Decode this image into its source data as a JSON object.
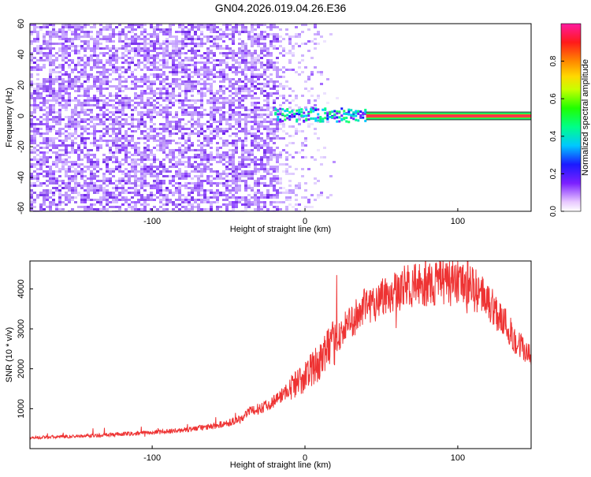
{
  "title": "GN04.2026.019.04.26.E36",
  "chart_data": [
    {
      "type": "heatmap",
      "title": "GN04.2026.019.04.26.E36",
      "xlabel": "Height of straight line (km)",
      "ylabel": "Frequency (Hz)",
      "xlim": [
        -180,
        148
      ],
      "ylim": [
        -62,
        60
      ],
      "x_ticks": [
        -100,
        0,
        100
      ],
      "y_ticks": [
        -60,
        -40,
        -20,
        0,
        20,
        40,
        60
      ],
      "colorbar": {
        "label": "Normalized spectral amplitude",
        "range": [
          0,
          1
        ],
        "ticks": [
          0.0,
          0.2,
          0.4,
          0.6,
          0.8
        ],
        "tick_labels": [
          "0.0",
          "0.2",
          "0.4",
          "0.6",
          "0.8"
        ]
      },
      "regions": [
        {
          "name": "dense noise",
          "x_range": [
            -180,
            -18
          ],
          "amplitude": 0.12
        },
        {
          "name": "fading noise",
          "x_range": [
            -18,
            22
          ],
          "amplitude": 0.06
        },
        {
          "name": "signal onset",
          "x_range": [
            -20,
            40
          ],
          "freq_range": [
            -4,
            5
          ],
          "amplitude": 0.4
        },
        {
          "name": "signal band",
          "x_range": [
            40,
            148
          ],
          "freq_range": [
            -1,
            1
          ],
          "amplitude": 0.95
        }
      ]
    },
    {
      "type": "line",
      "xlabel": "Height of straight line (km)",
      "ylabel": "SNR (10 * v/v)",
      "xlim": [
        -180,
        148
      ],
      "ylim": [
        0,
        4700
      ],
      "x_ticks": [
        -100,
        0,
        100
      ],
      "y_ticks": [
        1000,
        2000,
        3000,
        4000
      ],
      "series": [
        {
          "name": "SNR",
          "color": "#ee3333",
          "x": [
            -180,
            -150,
            -120,
            -100,
            -80,
            -60,
            -50,
            -42,
            -38,
            -30,
            -20,
            -10,
            0,
            10,
            20,
            30,
            40,
            50,
            60,
            70,
            80,
            90,
            100,
            110,
            120,
            130,
            140,
            148
          ],
          "y": [
            270,
            310,
            360,
            400,
            460,
            560,
            650,
            750,
            900,
            1000,
            1200,
            1500,
            1800,
            2200,
            2700,
            3200,
            3550,
            3800,
            4000,
            4050,
            4100,
            4150,
            4150,
            4000,
            3700,
            3200,
            2600,
            2300
          ]
        }
      ]
    }
  ]
}
